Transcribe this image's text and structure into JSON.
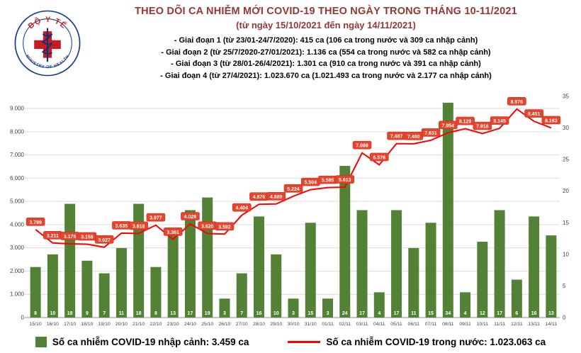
{
  "header": {
    "title_line1": "THEO DÕI CA NHIỄM MỚI COVID-19 THEO NGÀY TRONG THÁNG 10-11/2021",
    "title_line2": "(từ ngày 15/10/2021 đến ngày 14/11/2021)",
    "phases": [
      "- Giai đoạn 1 (từ 23/01-24/7/2020): 415 ca (106 ca trong nước và 309 ca nhập cảnh)",
      "- Giai đoạn 2 (từ 25/7/2020-27/01/2021): 1.136 ca (554 ca trong nước và 582 ca nhập cảnh)",
      "- Giai đoạn 3 (từ 28/01-26/4/2021): 1.301 ca (910 ca trong nước và 391 ca nhập cảnh)",
      "- Giai đoạn 4 (từ 27/4/2021): 1.023.670 ca (1.021.493 ca trong nước và 2.177 ca nhập cảnh)"
    ],
    "logo": {
      "text_top": "BỘ Y TẾ",
      "text_bottom": "MINISTRY OF HEALTH"
    }
  },
  "colors": {
    "title": "#953735",
    "bar_green": "#538135",
    "line_red": "#ff0000",
    "label_box": "#e8432c"
  },
  "chart_data": {
    "type": "bar",
    "title": "THEO DÕI CA NHIỄM MỚI COVID-19 THEO NGÀY TRONG THÁNG 10-11/2021",
    "subtitle": "(từ ngày 15/10/2021 đến ngày 14/11/2021)",
    "categories": [
      "15/10",
      "16/10",
      "17/10",
      "18/10",
      "19/10",
      "20/10",
      "21/10",
      "22/10",
      "23/10",
      "24/10",
      "25/10",
      "26/10",
      "27/10",
      "28/10",
      "29/10",
      "30/10",
      "31/10",
      "01/11",
      "02/11",
      "03/11",
      "04/11",
      "05/11",
      "06/11",
      "07/11",
      "08/11",
      "09/11",
      "10/11",
      "11/11",
      "12/11",
      "13/11",
      "14/11"
    ],
    "series": [
      {
        "name": "Số ca nhiễm COVID-19 nhập cảnh",
        "type": "bar",
        "axis": "right",
        "color": "#538135",
        "label_color": "#ffffff",
        "values": [
          8,
          10,
          18,
          9,
          7,
          11,
          18,
          8,
          13,
          17,
          19,
          3,
          7,
          16,
          10,
          3,
          15,
          3,
          24,
          17,
          4,
          17,
          11,
          15,
          34,
          4,
          12,
          17,
          6,
          16,
          13
        ]
      },
      {
        "name": "Số ca nhiễm COVID-19 trong nước",
        "type": "line",
        "axis": "left",
        "color": "#ff0000",
        "label_bg": "#e8432c",
        "label_border": "#c0381f",
        "values": [
          3789,
          3211,
          3175,
          3159,
          3027,
          3635,
          3618,
          3977,
          3361,
          4028,
          3620,
          3592,
          4404,
          4876,
          4889,
          5224,
          5504,
          5595,
          5613,
          7089,
          6576,
          7487,
          7480,
          7631,
          7954,
          8129,
          7918,
          8145,
          8976,
          8451,
          8163
        ],
        "labels": [
          "3.789",
          "3.211",
          "3.175",
          "3.159",
          "3.027",
          "3.635",
          "3.618",
          "3.977",
          "3.361",
          "4.028",
          "3.620",
          "3.592",
          "4.404",
          "4.876",
          "4.889",
          "5.224",
          "5.504",
          "5.595",
          "5.613",
          "7.089",
          "6.576",
          "7.487",
          "7.480",
          "7.631",
          "7.954",
          "8.129",
          "7.918",
          "8.145",
          "8.976",
          "8.451",
          "8.163"
        ]
      }
    ],
    "left_axis": {
      "max": 9520,
      "ticks": [
        {
          "v": 0,
          "label": "0"
        },
        {
          "v": 1000,
          "label": "1.000"
        },
        {
          "v": 2000,
          "label": "2.000"
        },
        {
          "v": 3000,
          "label": "3.000"
        },
        {
          "v": 4000,
          "label": "4.000"
        },
        {
          "v": 5000,
          "label": "5.000"
        },
        {
          "v": 6000,
          "label": "6.000"
        },
        {
          "v": 7000,
          "label": "7.000"
        },
        {
          "v": 8000,
          "label": "8.000"
        },
        {
          "v": 9000,
          "label": "9.000"
        }
      ]
    },
    "right_axis": {
      "max": 35,
      "ticks": [
        {
          "v": 0,
          "label": "0"
        },
        {
          "v": 5,
          "label": "5"
        },
        {
          "v": 10,
          "label": "10"
        },
        {
          "v": 15,
          "label": "15"
        },
        {
          "v": 20,
          "label": "20"
        },
        {
          "v": 25,
          "label": "25"
        },
        {
          "v": 30,
          "label": "30"
        },
        {
          "v": 35,
          "label": "35"
        }
      ]
    },
    "grid": "horizontal",
    "legend_position": "bottom"
  },
  "legend": {
    "bar_label": "Số ca nhiễm COVID-19 nhập cảnh: 3.459 ca",
    "line_label": "Số ca nhiễm COVID-19 trong nước: 1.023.063 ca"
  }
}
